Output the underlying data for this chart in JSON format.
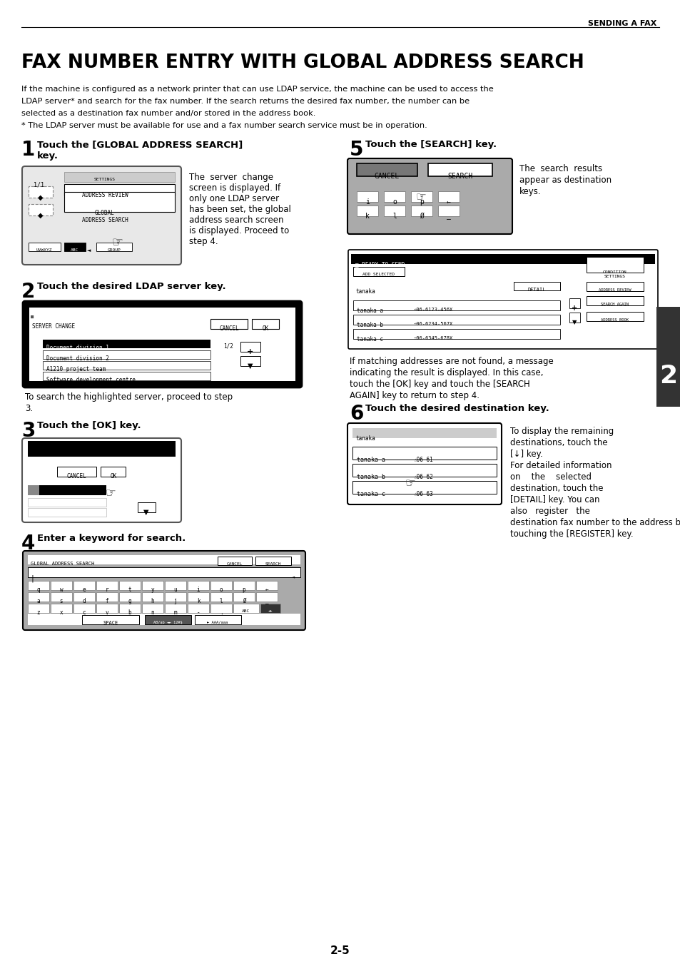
{
  "page_header": "SENDING A FAX",
  "main_title": "FAX NUMBER ENTRY WITH GLOBAL ADDRESS SEARCH",
  "intro_line1": "If the machine is configured as a network printer that can use LDAP service, the machine can be used to access the",
  "intro_line2": "LDAP server* and search for the fax number. If the search returns the desired fax number, the number can be",
  "intro_line3": "selected as a destination fax number and/or stored in the address book.",
  "intro_line4": "* The LDAP server must be available for use and a fax number search service must be in operation.",
  "step1_num": "1",
  "step1_title": "Touch the [GLOBAL ADDRESS SEARCH]",
  "step1_title2": "key.",
  "step1_text_lines": [
    "The  server  change",
    "screen is displayed. If",
    "only one LDAP server",
    "has been set, the global",
    "address search screen",
    "is displayed. Proceed to",
    "step 4."
  ],
  "step2_num": "2",
  "step2_title": "Touch the desired LDAP server key.",
  "step2_note1": "To search the highlighted server, proceed to step",
  "step2_note2": "3.",
  "step3_num": "3",
  "step3_title": "Touch the [OK] key.",
  "step4_num": "4",
  "step4_title": "Enter a keyword for search.",
  "step5_num": "5",
  "step5_title": "Touch the [SEARCH] key.",
  "step5_text_lines": [
    "The  search  results",
    "appear as destination",
    "keys."
  ],
  "step5_note_lines": [
    "If matching addresses are not found, a message",
    "indicating the result is displayed. In this case,",
    "touch the [OK] key and touch the [SEARCH",
    "AGAIN] key to return to step 4."
  ],
  "step6_num": "6",
  "step6_title": "Touch the desired destination key.",
  "step6_text_lines": [
    "To display the remaining",
    "destinations, touch the",
    "[↓] key.",
    "For detailed information",
    "on    the    selected",
    "destination, touch the",
    "[DETAIL] key. You can",
    "also   register   the",
    "destination fax number to the address book by",
    "touching the [REGISTER] key."
  ],
  "sidebar_num": "2",
  "page_num": "2-5",
  "bg_color": "#ffffff"
}
